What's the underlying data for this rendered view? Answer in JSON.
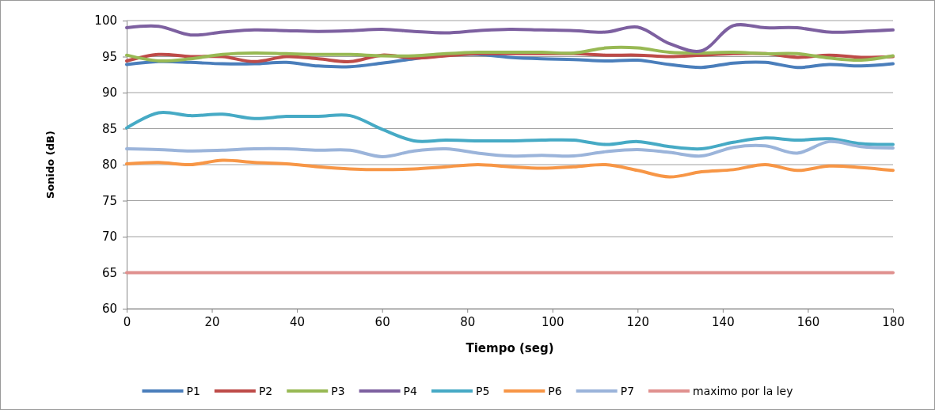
{
  "chart_data": {
    "type": "line",
    "xlabel": "Tiempo (seg)",
    "ylabel": "Sonido (dB)",
    "x": [
      0,
      7.5,
      15,
      22.5,
      30,
      37.5,
      45,
      52.5,
      60,
      67.5,
      75,
      82.5,
      90,
      97.5,
      105,
      112.5,
      120,
      127.5,
      135,
      142.5,
      150,
      157.5,
      165,
      172.5,
      180
    ],
    "xlim": [
      0,
      180
    ],
    "xticks": [
      0,
      20,
      40,
      60,
      80,
      100,
      120,
      140,
      160,
      180
    ],
    "ylim": [
      60,
      100
    ],
    "yticks": [
      60,
      65,
      70,
      75,
      80,
      85,
      90,
      95,
      100
    ],
    "grid": "y",
    "legend": "bottom",
    "marker": "none",
    "line_style": "solid",
    "series": [
      {
        "name": "P1",
        "color": "#4a7ebb",
        "values": [
          93.9,
          94.3,
          94.2,
          94.0,
          94.0,
          94.2,
          93.7,
          93.6,
          94.1,
          94.7,
          95.2,
          95.3,
          94.9,
          94.7,
          94.6,
          94.4,
          94.5,
          93.9,
          93.5,
          94.1,
          94.2,
          93.5,
          93.9,
          93.7,
          94.0
        ]
      },
      {
        "name": "P2",
        "color": "#be4b48",
        "values": [
          94.4,
          95.3,
          95.0,
          95.0,
          94.3,
          95.0,
          94.7,
          94.3,
          95.2,
          94.8,
          95.1,
          95.4,
          95.4,
          95.4,
          95.4,
          95.2,
          95.2,
          95.0,
          95.2,
          95.4,
          95.4,
          94.9,
          95.2,
          94.9,
          95.0
        ]
      },
      {
        "name": "P3",
        "color": "#98b954",
        "values": [
          95.2,
          94.4,
          94.7,
          95.3,
          95.5,
          95.4,
          95.3,
          95.3,
          95.1,
          95.1,
          95.4,
          95.6,
          95.6,
          95.6,
          95.5,
          96.2,
          96.2,
          95.6,
          95.5,
          95.6,
          95.4,
          95.4,
          94.8,
          94.5,
          95.1
        ]
      },
      {
        "name": "P4",
        "color": "#7d60a0",
        "values": [
          99.0,
          99.2,
          98.0,
          98.4,
          98.7,
          98.6,
          98.5,
          98.6,
          98.8,
          98.5,
          98.3,
          98.6,
          98.8,
          98.7,
          98.6,
          98.4,
          99.1,
          96.8,
          95.8,
          99.3,
          99.0,
          99.0,
          98.4,
          98.5,
          98.7
        ]
      },
      {
        "name": "P5",
        "color": "#46aac5",
        "values": [
          85.1,
          87.2,
          86.8,
          87.0,
          86.4,
          86.7,
          86.7,
          86.8,
          84.9,
          83.3,
          83.4,
          83.3,
          83.3,
          83.4,
          83.4,
          82.8,
          83.2,
          82.5,
          82.2,
          83.1,
          83.7,
          83.4,
          83.6,
          82.9,
          82.8
        ]
      },
      {
        "name": "P6",
        "color": "#f79646",
        "values": [
          80.1,
          80.3,
          80.0,
          80.6,
          80.3,
          80.1,
          79.7,
          79.4,
          79.3,
          79.4,
          79.7,
          80.0,
          79.7,
          79.5,
          79.7,
          80.0,
          79.2,
          78.3,
          79.0,
          79.3,
          80.0,
          79.2,
          79.8,
          79.6,
          79.2
        ]
      },
      {
        "name": "P7",
        "color": "#9bb4da",
        "values": [
          82.2,
          82.1,
          81.9,
          82.0,
          82.2,
          82.2,
          82.0,
          82.0,
          81.1,
          81.9,
          82.2,
          81.6,
          81.2,
          81.3,
          81.2,
          81.8,
          82.1,
          81.7,
          81.2,
          82.4,
          82.6,
          81.6,
          83.2,
          82.5,
          82.3
        ]
      },
      {
        "name": "maximo por la ley",
        "color": "#e0918f",
        "x": [
          0,
          180
        ],
        "values": [
          65,
          65
        ]
      }
    ]
  }
}
